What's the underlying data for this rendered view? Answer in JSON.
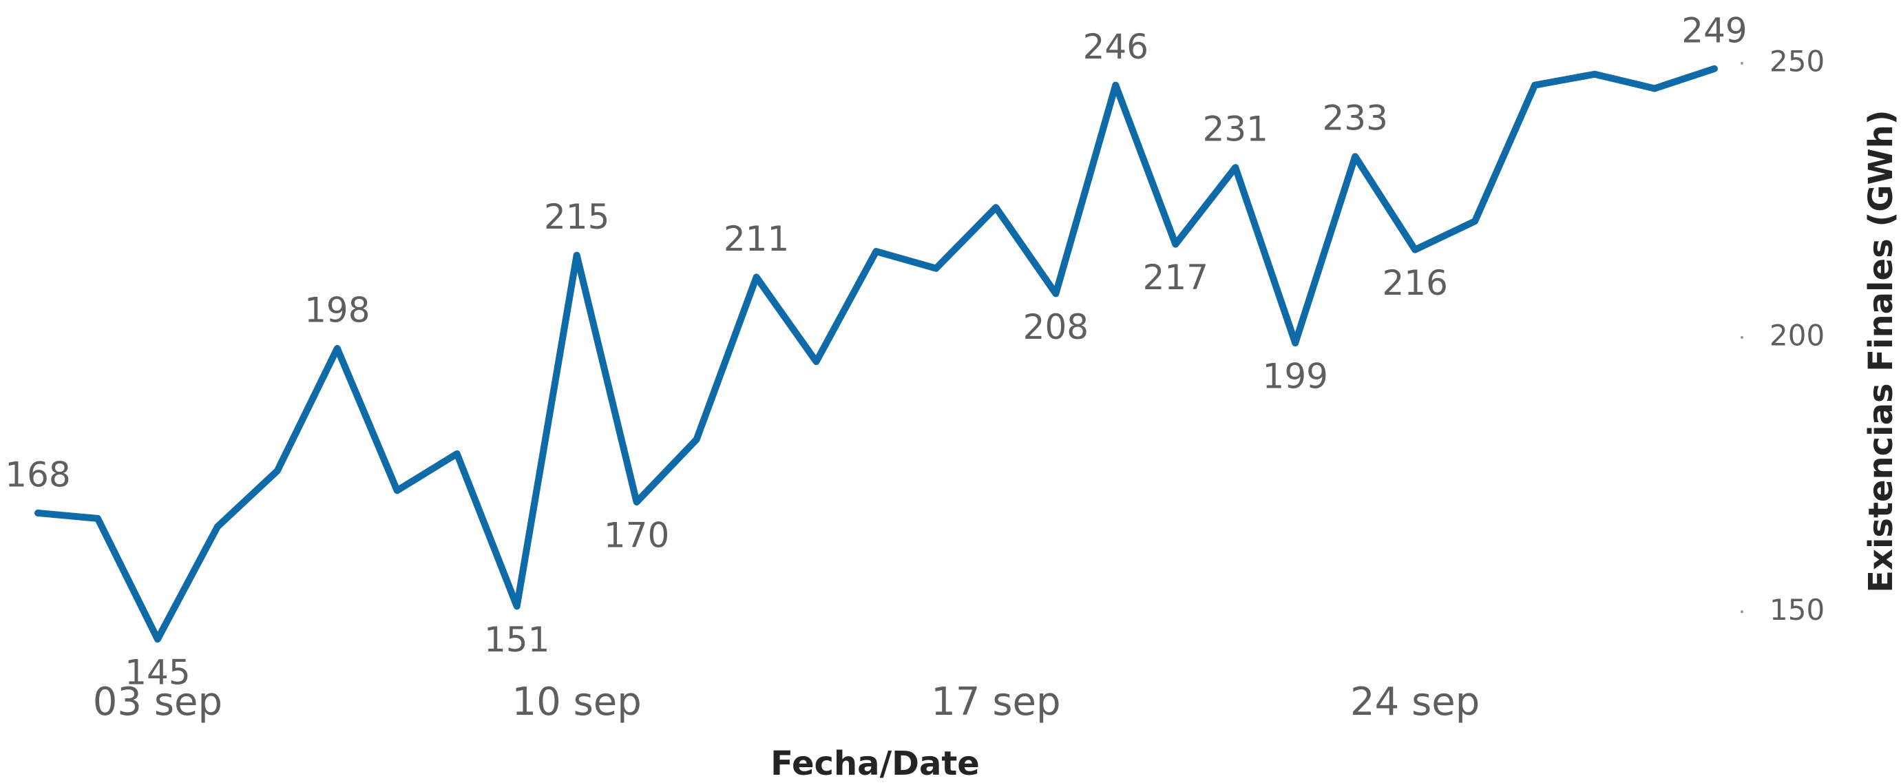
{
  "chart_data": {
    "type": "line",
    "x_label": "Fecha/Date",
    "y_label": "Existencias Finales (GWh)",
    "categories": [
      null,
      null,
      "03 sep",
      null,
      null,
      null,
      null,
      null,
      null,
      "10 sep",
      null,
      null,
      null,
      null,
      null,
      null,
      "17 sep",
      null,
      null,
      null,
      null,
      null,
      null,
      "24 sep",
      null,
      null,
      null,
      null,
      null
    ],
    "series": [
      {
        "name": "Existencias Finales",
        "color": "#0f6aa8",
        "values": [
          168,
          167,
          145,
          165.5,
          175.7,
          198,
          172.1,
          178.8,
          151,
          215,
          170,
          181.4,
          211,
          195.6,
          215.7,
          212.6,
          223.7,
          208,
          246,
          217,
          231,
          199,
          233,
          216,
          221.2,
          246,
          248,
          245.4,
          249
        ],
        "value_labels": [
          "168",
          null,
          "145",
          null,
          null,
          "198",
          null,
          null,
          "151",
          "215",
          "170",
          null,
          "211",
          null,
          null,
          null,
          null,
          "208",
          "246",
          "217",
          "231",
          "199",
          "233",
          "216",
          null,
          null,
          null,
          null,
          "249"
        ]
      }
    ],
    "ylim": [
      142,
      255
    ],
    "yticks": [
      150,
      200,
      250
    ]
  }
}
